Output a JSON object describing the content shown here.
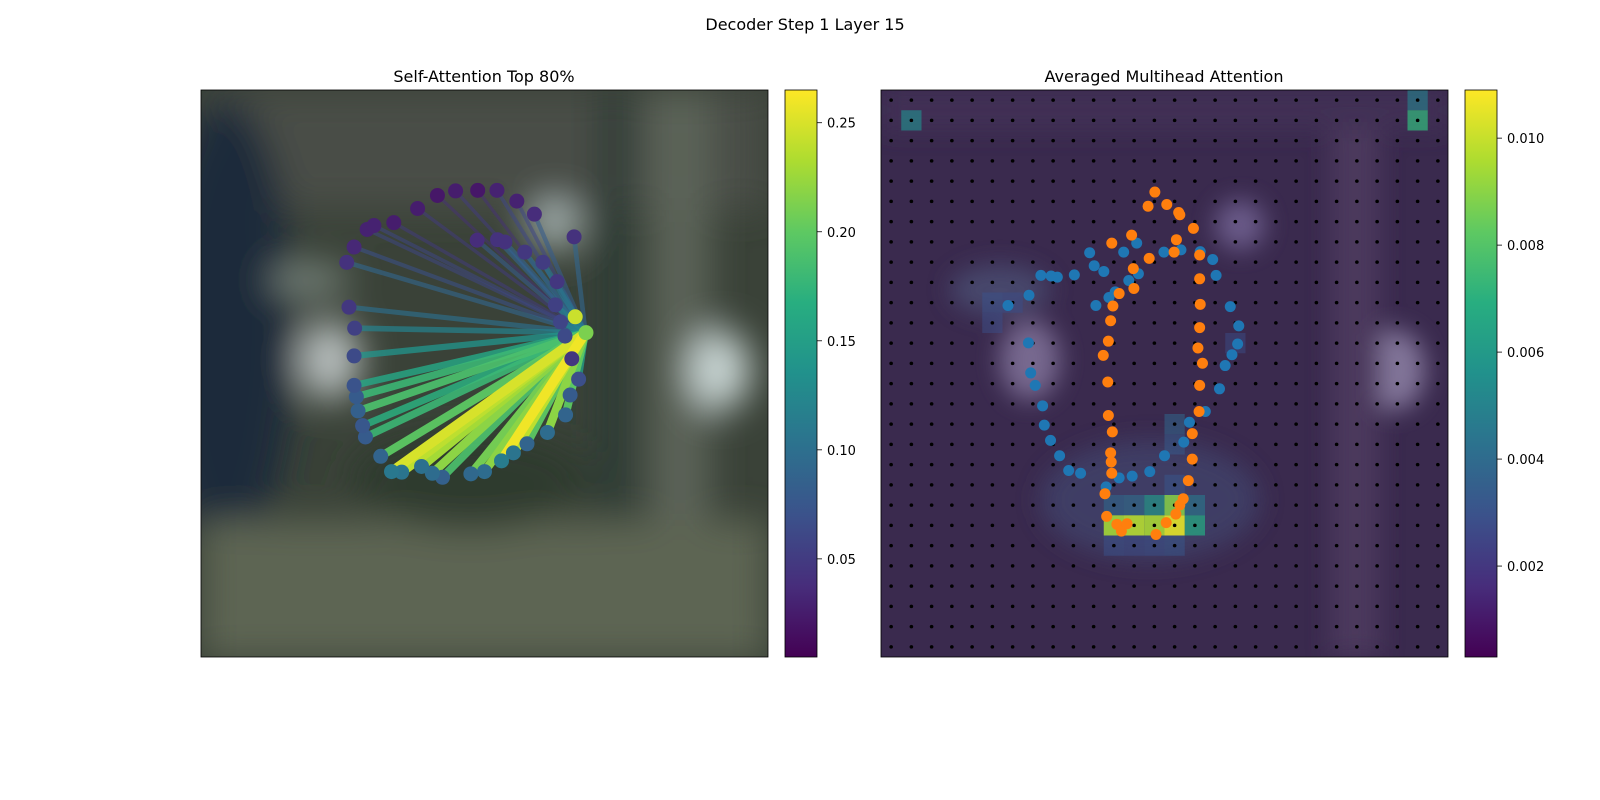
{
  "figure": {
    "title": "Decoder Step 1 Layer 15"
  },
  "chart_data": [
    {
      "type": "scatter",
      "title": "Self-Attention Top 80%",
      "xlim": [
        0,
        1
      ],
      "ylim": [
        0,
        1
      ],
      "description_of_marks": "Contour points on a blurred image; lines fan from one point, coloured by attention weight",
      "colormap": "viridis",
      "colorbar": {
        "range": [
          0.005,
          0.265
        ],
        "ticks": [
          0.05,
          0.1,
          0.15,
          0.2,
          0.25
        ],
        "tick_labels": [
          "0.05",
          "0.10",
          "0.15",
          "0.20",
          "0.25"
        ]
      },
      "source_point": {
        "x": 0.678,
        "y": 0.428
      },
      "points": [
        {
          "x": 0.487,
          "y": 0.265
        },
        {
          "x": 0.523,
          "y": 0.264
        },
        {
          "x": 0.536,
          "y": 0.268
        },
        {
          "x": 0.571,
          "y": 0.286
        },
        {
          "x": 0.603,
          "y": 0.304
        },
        {
          "x": 0.628,
          "y": 0.338
        },
        {
          "x": 0.625,
          "y": 0.379
        },
        {
          "x": 0.634,
          "y": 0.409
        },
        {
          "x": 0.642,
          "y": 0.434
        },
        {
          "x": 0.679,
          "y": 0.428
        },
        {
          "x": 0.666,
          "y": 0.51
        },
        {
          "x": 0.651,
          "y": 0.538
        },
        {
          "x": 0.643,
          "y": 0.573
        },
        {
          "x": 0.611,
          "y": 0.604
        },
        {
          "x": 0.575,
          "y": 0.624
        },
        {
          "x": 0.551,
          "y": 0.64
        },
        {
          "x": 0.53,
          "y": 0.654
        },
        {
          "x": 0.5,
          "y": 0.673
        },
        {
          "x": 0.476,
          "y": 0.677
        },
        {
          "x": 0.426,
          "y": 0.683
        },
        {
          "x": 0.408,
          "y": 0.676
        },
        {
          "x": 0.389,
          "y": 0.664
        },
        {
          "x": 0.354,
          "y": 0.674
        },
        {
          "x": 0.336,
          "y": 0.673
        },
        {
          "x": 0.317,
          "y": 0.646
        },
        {
          "x": 0.29,
          "y": 0.612
        },
        {
          "x": 0.285,
          "y": 0.592
        },
        {
          "x": 0.277,
          "y": 0.566
        },
        {
          "x": 0.274,
          "y": 0.541
        },
        {
          "x": 0.27,
          "y": 0.521
        },
        {
          "x": 0.27,
          "y": 0.469
        },
        {
          "x": 0.271,
          "y": 0.42
        },
        {
          "x": 0.261,
          "y": 0.383
        },
        {
          "x": 0.257,
          "y": 0.304
        },
        {
          "x": 0.27,
          "y": 0.277
        },
        {
          "x": 0.293,
          "y": 0.246
        },
        {
          "x": 0.305,
          "y": 0.239
        },
        {
          "x": 0.34,
          "y": 0.234
        },
        {
          "x": 0.382,
          "y": 0.209
        },
        {
          "x": 0.417,
          "y": 0.186
        },
        {
          "x": 0.449,
          "y": 0.178
        },
        {
          "x": 0.488,
          "y": 0.177
        },
        {
          "x": 0.522,
          "y": 0.177
        },
        {
          "x": 0.557,
          "y": 0.196
        },
        {
          "x": 0.588,
          "y": 0.219
        },
        {
          "x": 0.658,
          "y": 0.259
        },
        {
          "x": 0.654,
          "y": 0.474
        },
        {
          "x": 0.66,
          "y": 0.4
        }
      ],
      "edge_weights": [
        0.08,
        0.09,
        0.09,
        0.1,
        0.11,
        0.1,
        0.12,
        0.13,
        0.14,
        0.16,
        0.15,
        0.18,
        0.2,
        0.22,
        0.2,
        0.24,
        0.26,
        0.22,
        0.21,
        0.19,
        0.22,
        0.23,
        0.24,
        0.25,
        0.2,
        0.18,
        0.17,
        0.19,
        0.18,
        0.16,
        0.14,
        0.12,
        0.1,
        0.09,
        0.07,
        0.06,
        0.06,
        0.05,
        0.05,
        0.04,
        0.05,
        0.04,
        0.06,
        0.06,
        0.08,
        0.09,
        0.1
      ]
    },
    {
      "type": "heatmap",
      "title": "Averaged Multihead Attention",
      "xlim": [
        0,
        1
      ],
      "ylim": [
        0,
        1
      ],
      "grid_size": 28,
      "colormap": "viridis",
      "colorbar": {
        "range": [
          0.0003,
          0.0109
        ],
        "ticks": [
          0.002,
          0.004,
          0.006,
          0.008,
          0.01
        ],
        "tick_labels": [
          "0.002",
          "0.004",
          "0.006",
          "0.008",
          "0.010"
        ]
      },
      "hot_cells": [
        {
          "row": 1,
          "col": 1,
          "value": 0.0055
        },
        {
          "row": 0,
          "col": 26,
          "value": 0.005
        },
        {
          "row": 1,
          "col": 26,
          "value": 0.0072
        },
        {
          "row": 21,
          "col": 11,
          "value": 0.0095
        },
        {
          "row": 21,
          "col": 12,
          "value": 0.0098
        },
        {
          "row": 21,
          "col": 13,
          "value": 0.0096
        },
        {
          "row": 21,
          "col": 14,
          "value": 0.0105
        },
        {
          "row": 20,
          "col": 14,
          "value": 0.009
        },
        {
          "row": 20,
          "col": 13,
          "value": 0.006
        },
        {
          "row": 21,
          "col": 15,
          "value": 0.0068
        },
        {
          "row": 20,
          "col": 11,
          "value": 0.004
        },
        {
          "row": 20,
          "col": 12,
          "value": 0.0042
        },
        {
          "row": 20,
          "col": 15,
          "value": 0.0046
        },
        {
          "row": 22,
          "col": 11,
          "value": 0.003
        },
        {
          "row": 22,
          "col": 12,
          "value": 0.0028
        },
        {
          "row": 22,
          "col": 13,
          "value": 0.003
        },
        {
          "row": 22,
          "col": 14,
          "value": 0.0032
        },
        {
          "row": 19,
          "col": 14,
          "value": 0.0032
        },
        {
          "row": 16,
          "col": 14,
          "value": 0.0038
        },
        {
          "row": 17,
          "col": 14,
          "value": 0.0034
        },
        {
          "row": 10,
          "col": 5,
          "value": 0.003
        },
        {
          "row": 11,
          "col": 5,
          "value": 0.0028
        },
        {
          "row": 10,
          "col": 6,
          "value": 0.0028
        },
        {
          "row": 12,
          "col": 17,
          "value": 0.0028
        }
      ],
      "series": [
        {
          "color": "#1f77b4",
          "points": [
            {
              "x": 0.451,
              "y": 0.27
            },
            {
              "x": 0.428,
              "y": 0.286
            },
            {
              "x": 0.393,
              "y": 0.32
            },
            {
              "x": 0.341,
              "y": 0.326
            },
            {
              "x": 0.311,
              "y": 0.33
            },
            {
              "x": 0.261,
              "y": 0.362
            },
            {
              "x": 0.224,
              "y": 0.38
            },
            {
              "x": 0.282,
              "y": 0.327
            },
            {
              "x": 0.3,
              "y": 0.328
            },
            {
              "x": 0.26,
              "y": 0.446
            },
            {
              "x": 0.264,
              "y": 0.499
            },
            {
              "x": 0.272,
              "y": 0.521
            },
            {
              "x": 0.285,
              "y": 0.557
            },
            {
              "x": 0.288,
              "y": 0.591
            },
            {
              "x": 0.299,
              "y": 0.618
            },
            {
              "x": 0.315,
              "y": 0.645
            },
            {
              "x": 0.331,
              "y": 0.671
            },
            {
              "x": 0.352,
              "y": 0.676
            },
            {
              "x": 0.397,
              "y": 0.7
            },
            {
              "x": 0.42,
              "y": 0.684
            },
            {
              "x": 0.443,
              "y": 0.681
            },
            {
              "x": 0.474,
              "y": 0.673
            },
            {
              "x": 0.5,
              "y": 0.645
            },
            {
              "x": 0.534,
              "y": 0.621
            },
            {
              "x": 0.544,
              "y": 0.586
            },
            {
              "x": 0.572,
              "y": 0.567
            },
            {
              "x": 0.597,
              "y": 0.527
            },
            {
              "x": 0.607,
              "y": 0.486
            },
            {
              "x": 0.619,
              "y": 0.467
            },
            {
              "x": 0.629,
              "y": 0.448
            },
            {
              "x": 0.631,
              "y": 0.416
            },
            {
              "x": 0.616,
              "y": 0.382
            },
            {
              "x": 0.591,
              "y": 0.327
            },
            {
              "x": 0.585,
              "y": 0.299
            },
            {
              "x": 0.563,
              "y": 0.285
            },
            {
              "x": 0.529,
              "y": 0.282
            },
            {
              "x": 0.499,
              "y": 0.286
            },
            {
              "x": 0.454,
              "y": 0.324
            },
            {
              "x": 0.437,
              "y": 0.336
            },
            {
              "x": 0.413,
              "y": 0.356
            },
            {
              "x": 0.402,
              "y": 0.366
            },
            {
              "x": 0.379,
              "y": 0.38
            },
            {
              "x": 0.376,
              "y": 0.31
            },
            {
              "x": 0.368,
              "y": 0.287
            }
          ]
        },
        {
          "color": "#ff7f0e",
          "points": [
            {
              "x": 0.521,
              "y": 0.264
            },
            {
              "x": 0.517,
              "y": 0.286
            },
            {
              "x": 0.473,
              "y": 0.297
            },
            {
              "x": 0.445,
              "y": 0.315
            },
            {
              "x": 0.446,
              "y": 0.35
            },
            {
              "x": 0.42,
              "y": 0.359
            },
            {
              "x": 0.409,
              "y": 0.381
            },
            {
              "x": 0.405,
              "y": 0.407
            },
            {
              "x": 0.401,
              "y": 0.443
            },
            {
              "x": 0.392,
              "y": 0.468
            },
            {
              "x": 0.4,
              "y": 0.515
            },
            {
              "x": 0.401,
              "y": 0.574
            },
            {
              "x": 0.408,
              "y": 0.603
            },
            {
              "x": 0.405,
              "y": 0.64
            },
            {
              "x": 0.406,
              "y": 0.656
            },
            {
              "x": 0.407,
              "y": 0.676
            },
            {
              "x": 0.395,
              "y": 0.712
            },
            {
              "x": 0.398,
              "y": 0.752
            },
            {
              "x": 0.416,
              "y": 0.766
            },
            {
              "x": 0.424,
              "y": 0.778
            },
            {
              "x": 0.434,
              "y": 0.765
            },
            {
              "x": 0.485,
              "y": 0.784
            },
            {
              "x": 0.503,
              "y": 0.763
            },
            {
              "x": 0.52,
              "y": 0.748
            },
            {
              "x": 0.527,
              "y": 0.732
            },
            {
              "x": 0.533,
              "y": 0.721
            },
            {
              "x": 0.542,
              "y": 0.689
            },
            {
              "x": 0.549,
              "y": 0.651
            },
            {
              "x": 0.549,
              "y": 0.606
            },
            {
              "x": 0.561,
              "y": 0.567
            },
            {
              "x": 0.562,
              "y": 0.521
            },
            {
              "x": 0.567,
              "y": 0.482
            },
            {
              "x": 0.559,
              "y": 0.455
            },
            {
              "x": 0.562,
              "y": 0.419
            },
            {
              "x": 0.563,
              "y": 0.378
            },
            {
              "x": 0.562,
              "y": 0.333
            },
            {
              "x": 0.562,
              "y": 0.291
            },
            {
              "x": 0.551,
              "y": 0.244
            },
            {
              "x": 0.527,
              "y": 0.22
            },
            {
              "x": 0.504,
              "y": 0.202
            },
            {
              "x": 0.483,
              "y": 0.18
            },
            {
              "x": 0.471,
              "y": 0.205
            },
            {
              "x": 0.525,
              "y": 0.216
            },
            {
              "x": 0.442,
              "y": 0.256
            },
            {
              "x": 0.407,
              "y": 0.27
            }
          ]
        }
      ]
    }
  ]
}
